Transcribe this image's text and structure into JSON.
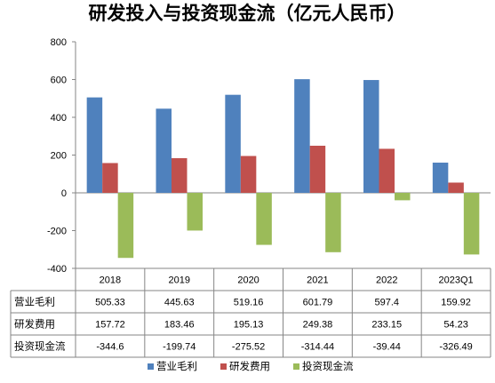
{
  "chart_data": {
    "type": "bar",
    "title": "研发投入与投资现金流（亿元人民币）",
    "categories": [
      "2018",
      "2019",
      "2020",
      "2021",
      "2022",
      "2023Q1"
    ],
    "series": [
      {
        "name": "营业毛利",
        "color": "#4F81BD",
        "values": [
          505.33,
          445.63,
          519.16,
          601.79,
          597.4,
          159.92
        ]
      },
      {
        "name": "研发费用",
        "color": "#C0504D",
        "values": [
          157.72,
          183.46,
          195.13,
          249.38,
          233.15,
          54.23
        ]
      },
      {
        "name": "投资现金流",
        "color": "#9BBB59",
        "values": [
          -344.6,
          -199.74,
          -275.52,
          -314.44,
          -39.44,
          -326.49
        ]
      }
    ],
    "value_labels": [
      [
        "505.33",
        "445.63",
        "519.16",
        "601.79",
        "597.4",
        "159.92"
      ],
      [
        "157.72",
        "183.46",
        "195.13",
        "249.38",
        "233.15",
        "54.23"
      ],
      [
        "-344.6",
        "-199.74",
        "-275.52",
        "-314.44",
        "-39.44",
        "-326.49"
      ]
    ],
    "ylim": [
      -400,
      800
    ],
    "yticks": [
      800,
      600,
      400,
      200,
      0,
      -200,
      -400
    ],
    "grid": false,
    "data_table": true,
    "legend_position": "bottom"
  }
}
